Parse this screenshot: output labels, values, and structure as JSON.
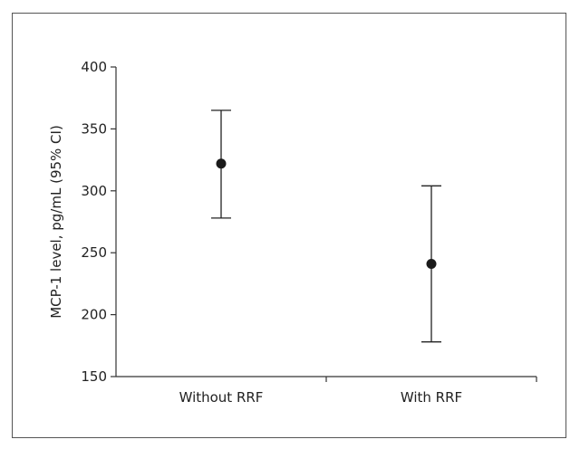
{
  "chart_data": {
    "type": "scatter",
    "title": "",
    "xlabel": "",
    "ylabel": "MCP-1 level, pg/mL (95% CI)",
    "categories": [
      "Without RRF",
      "With RRF"
    ],
    "series": [
      {
        "points": [
          {
            "x": "Without RRF",
            "y": 322,
            "ci_low": 278,
            "ci_high": 365
          },
          {
            "x": "With RRF",
            "y": 241,
            "ci_low": 178,
            "ci_high": 304
          }
        ]
      }
    ],
    "ylim": [
      150,
      400
    ],
    "yticks": [
      150,
      200,
      250,
      300,
      350,
      400
    ],
    "grid": false,
    "legend": "none",
    "marker_color": "#1a1a1a"
  }
}
